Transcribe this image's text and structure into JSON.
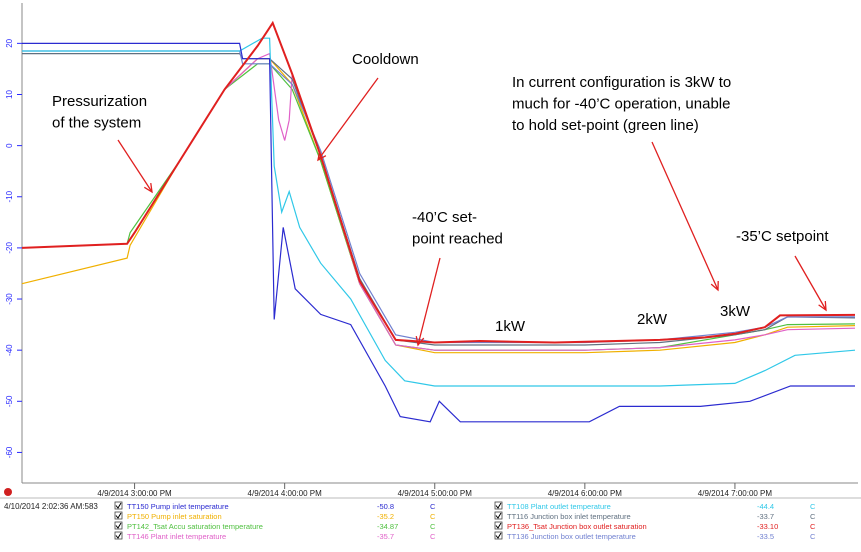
{
  "chart_data": {
    "type": "line",
    "xlim": [
      14.25,
      19.8
    ],
    "xticks": [
      {
        "value": 15,
        "label": "4/9/2014 3:00:00 PM"
      },
      {
        "value": 16,
        "label": "4/9/2014 4:00:00 PM"
      },
      {
        "value": 17,
        "label": "4/9/2014 5:00:00 PM"
      },
      {
        "value": 18,
        "label": "4/9/2014 6:00:00 PM"
      },
      {
        "value": 19,
        "label": "4/9/2014 7:00:00 PM"
      }
    ],
    "ylim": [
      -65,
      27.5
    ],
    "yticks": [
      20,
      10,
      0,
      -10,
      -20,
      -30,
      -40,
      -50,
      -60
    ],
    "timestamp": "4/10/2014 2:02:36 AM:583",
    "annotations": [
      {
        "lines": [
          "Pressurization",
          "of the system"
        ]
      },
      {
        "lines": [
          "Cooldown"
        ]
      },
      {
        "lines": [
          "In current configuration is 3kW to",
          "much for -40’C operation, unable",
          "to hold set-point (green line)"
        ]
      },
      {
        "lines": [
          "-40’C set-",
          "point reached"
        ]
      },
      {
        "lines": [
          "1kW"
        ]
      },
      {
        "lines": [
          "2kW"
        ]
      },
      {
        "lines": [
          "3kW"
        ]
      },
      {
        "lines": [
          "-35’C setpoint"
        ]
      }
    ],
    "series": [
      {
        "name": "TT150 Pump inlet temperature",
        "current": "-50.8",
        "unit": "C",
        "color": "#2b2bd0",
        "x": [
          14.25,
          15.7,
          15.72,
          15.9,
          15.93,
          15.99,
          16.07,
          16.24,
          16.44,
          16.67,
          16.77,
          16.97,
          17.03,
          17.17,
          18.03,
          18.23,
          18.77,
          19.1,
          19.37,
          19.8
        ],
        "values": [
          20,
          20,
          17,
          17,
          -34,
          -16,
          -28,
          -33,
          -35,
          -47,
          -53,
          -54,
          -50,
          -54,
          -54,
          -51,
          -51,
          -50,
          -47,
          -47
        ]
      },
      {
        "name": "PT150 Pump inlet saturation",
        "current": "-35.2",
        "unit": "C",
        "color": "#f0b000",
        "x": [
          14.25,
          14.95,
          14.97,
          15.3,
          15.6,
          15.82,
          15.9,
          16.05,
          16.24,
          16.5,
          16.74,
          17.0,
          17.5,
          18.0,
          18.5,
          19.0,
          19.2,
          19.35,
          19.8
        ],
        "values": [
          -27,
          -22,
          -19.5,
          -3,
          11,
          17,
          17,
          12,
          -3,
          -27,
          -39,
          -40.5,
          -40.5,
          -40.5,
          -40,
          -38.5,
          -37,
          -35.5,
          -35.2
        ]
      },
      {
        "name": "PT142_Tsat Accu saturation temperature",
        "current": "-34.87",
        "unit": "C",
        "color": "#50c040",
        "x": [
          14.25,
          14.95,
          14.97,
          15.3,
          15.6,
          15.82,
          15.9,
          16.05,
          16.24,
          16.5,
          16.74,
          17.0,
          17.5,
          18.0,
          18.5,
          19.0,
          19.2,
          19.35,
          19.8
        ],
        "values": [
          -20,
          -19.2,
          -17,
          -3,
          11,
          16,
          16,
          11,
          -3,
          -27,
          -39,
          -40,
          -40,
          -40,
          -39.5,
          -37,
          -36,
          -35,
          -34.87
        ]
      },
      {
        "name": "TT146 Plant inlet temperature",
        "current": "-35.7",
        "unit": "C",
        "color": "#e060c8",
        "x": [
          14.25,
          14.95,
          15.0,
          15.3,
          15.6,
          15.82,
          15.9,
          15.96,
          16.0,
          16.03,
          16.05,
          16.24,
          16.5,
          16.74,
          17.0,
          17.5,
          18.0,
          18.5,
          19.0,
          19.2,
          19.35,
          19.8
        ],
        "values": [
          -20,
          -19.2,
          -17,
          -3,
          11,
          17,
          18,
          5,
          1,
          5,
          14,
          -2,
          -27,
          -39,
          -40,
          -40,
          -40,
          -39.5,
          -38,
          -37,
          -36,
          -35.7
        ]
      },
      {
        "name": "TT108 Plant outlet temperature",
        "current": "-44.4",
        "unit": "C",
        "color": "#30c8e8",
        "x": [
          14.25,
          15.7,
          15.85,
          15.9,
          15.93,
          15.98,
          16.03,
          16.1,
          16.24,
          16.44,
          16.67,
          16.8,
          17.0,
          18.0,
          18.5,
          19.0,
          19.2,
          19.4,
          19.8
        ],
        "values": [
          18.5,
          18.5,
          21,
          21,
          -4,
          -13,
          -9,
          -16,
          -23,
          -30,
          -42,
          -46,
          -47,
          -47,
          -47,
          -46.5,
          -44,
          -41,
          -40
        ]
      },
      {
        "name": "TT116 Junction box inlet temperature",
        "current": "-33.7",
        "unit": "C",
        "color": "#607080",
        "x": [
          14.25,
          15.7,
          15.72,
          15.9,
          16.05,
          16.24,
          16.5,
          16.74,
          17.0,
          17.5,
          18.0,
          18.5,
          19.0,
          19.2,
          19.35,
          19.8
        ],
        "values": [
          18,
          18,
          17,
          17,
          13,
          -2,
          -26,
          -38,
          -39,
          -39,
          -39,
          -38.5,
          -37,
          -36,
          -33.5,
          -33.7
        ]
      },
      {
        "name": "PT136_Tsat Junction box outlet saturation",
        "current": "-33.10",
        "unit": "C",
        "color": "#e02020",
        "x": [
          14.25,
          14.95,
          15.0,
          15.3,
          15.6,
          15.82,
          15.92,
          16.05,
          16.24,
          16.5,
          16.74,
          17.0,
          17.3,
          17.8,
          18.5,
          18.8,
          19.0,
          19.2,
          19.3,
          19.8
        ],
        "values": [
          -20,
          -19.2,
          -17,
          -3,
          11,
          19.5,
          24,
          14,
          -2,
          -26.5,
          -38,
          -38.5,
          -38.2,
          -38.5,
          -38,
          -37.5,
          -36.8,
          -35.5,
          -33.2,
          -33.1
        ]
      },
      {
        "name": "TT136 Junction box outlet temperature",
        "current": "-33.5",
        "unit": "C",
        "color": "#7080d0",
        "x": [
          14.25,
          15.7,
          15.72,
          15.9,
          16.05,
          16.24,
          16.5,
          16.74,
          17.0,
          17.5,
          18.0,
          18.5,
          19.0,
          19.2,
          19.35,
          19.8
        ],
        "values": [
          18.5,
          18.5,
          16,
          16,
          12,
          -1,
          -25,
          -37,
          -38.5,
          -38.5,
          -38.5,
          -38,
          -36.5,
          -35.5,
          -33.5,
          -33.5
        ]
      }
    ]
  }
}
